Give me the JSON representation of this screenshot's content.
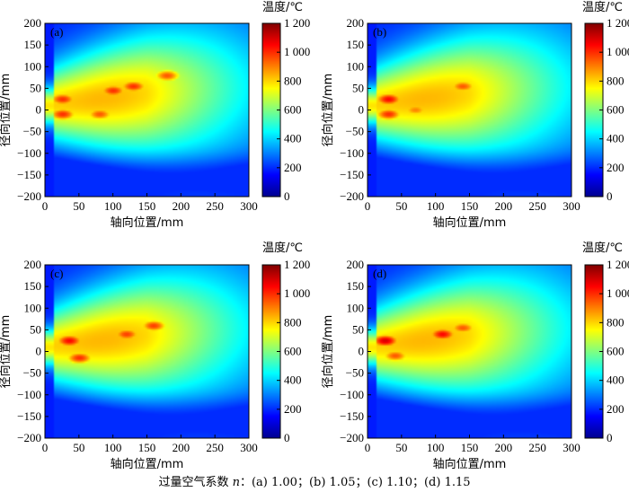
{
  "colors": {
    "colormap": [
      "#00008f",
      "#0000ff",
      "#0080ff",
      "#00ffff",
      "#80ff80",
      "#ffff00",
      "#ff8000",
      "#ff0000",
      "#800000"
    ]
  },
  "caption": {
    "prefix": "过量空气系数 ",
    "var": "n",
    "rest": "：(a) 1.00；(b) 1.05；(c) 1.10；(d) 1.15"
  },
  "chart_data": [
    {
      "type": "heatmap",
      "panel": "(a)",
      "excess_air_coefficient": 1.0,
      "xlabel": "轴向位置/mm",
      "ylabel": "径向位置/mm",
      "xlim": [
        0,
        300
      ],
      "ylim": [
        -200,
        200
      ],
      "xticks": [
        "0",
        "50",
        "100",
        "150",
        "200",
        "250",
        "300"
      ],
      "yticks": [
        "200",
        "150",
        "100",
        "50",
        "0",
        "−50",
        "−100",
        "−150",
        "−200"
      ],
      "colorbar": {
        "title": "温度/℃",
        "range": [
          0,
          1200
        ],
        "ticks": [
          "1 200",
          "1 000",
          "800",
          "600",
          "400",
          "200",
          "0"
        ]
      },
      "hotspots": [
        {
          "x": 25,
          "y": 25,
          "temperature": 1000
        },
        {
          "x": 25,
          "y": -10,
          "temperature": 1000
        },
        {
          "x": 80,
          "y": -10,
          "temperature": 950
        },
        {
          "x": 100,
          "y": 45,
          "temperature": 1000
        },
        {
          "x": 130,
          "y": 55,
          "temperature": 1000
        },
        {
          "x": 180,
          "y": 80,
          "temperature": 950
        }
      ]
    },
    {
      "type": "heatmap",
      "panel": "(b)",
      "excess_air_coefficient": 1.05,
      "xlabel": "轴向位置/mm",
      "ylabel": "径向位置/mm",
      "xlim": [
        0,
        300
      ],
      "ylim": [
        -200,
        200
      ],
      "xticks": [
        "0",
        "50",
        "100",
        "150",
        "200",
        "250",
        "300"
      ],
      "yticks": [
        "200",
        "150",
        "100",
        "50",
        "0",
        "−50",
        "−100",
        "−150",
        "−200"
      ],
      "colorbar": {
        "title": "温度/℃",
        "range": [
          0,
          1200
        ],
        "ticks": [
          "1 200",
          "1 000",
          "800",
          "600",
          "400",
          "200",
          "0"
        ]
      },
      "hotspots": [
        {
          "x": 30,
          "y": 25,
          "temperature": 1050
        },
        {
          "x": 30,
          "y": -10,
          "temperature": 1000
        },
        {
          "x": 70,
          "y": 0,
          "temperature": 900
        },
        {
          "x": 140,
          "y": 55,
          "temperature": 950
        }
      ]
    },
    {
      "type": "heatmap",
      "panel": "(c)",
      "excess_air_coefficient": 1.1,
      "xlabel": "轴向位置/mm",
      "ylabel": "径向位置/mm",
      "xlim": [
        0,
        300
      ],
      "ylim": [
        -200,
        200
      ],
      "xticks": [
        "0",
        "50",
        "100",
        "150",
        "200",
        "250",
        "300"
      ],
      "yticks": [
        "200",
        "150",
        "100",
        "50",
        "0",
        "−50",
        "−100",
        "−150",
        "−200"
      ],
      "colorbar": {
        "title": "温度/℃",
        "range": [
          0,
          1200
        ],
        "ticks": [
          "1 200",
          "1 000",
          "800",
          "600",
          "400",
          "200",
          "0"
        ]
      },
      "hotspots": [
        {
          "x": 35,
          "y": 25,
          "temperature": 1050
        },
        {
          "x": 50,
          "y": -15,
          "temperature": 1000
        },
        {
          "x": 120,
          "y": 40,
          "temperature": 980
        },
        {
          "x": 160,
          "y": 60,
          "temperature": 980
        }
      ]
    },
    {
      "type": "heatmap",
      "panel": "(d)",
      "excess_air_coefficient": 1.15,
      "xlabel": "轴向位置/mm",
      "ylabel": "径向位置/mm",
      "xlim": [
        0,
        300
      ],
      "ylim": [
        -200,
        200
      ],
      "xticks": [
        "0",
        "50",
        "100",
        "150",
        "200",
        "250",
        "300"
      ],
      "yticks": [
        "200",
        "150",
        "100",
        "50",
        "0",
        "−50",
        "−100",
        "−150",
        "−200"
      ],
      "colorbar": {
        "title": "温度/℃",
        "range": [
          0,
          1200
        ],
        "ticks": [
          "1 200",
          "1 000",
          "800",
          "600",
          "400",
          "200",
          "0"
        ]
      },
      "hotspots": [
        {
          "x": 25,
          "y": 25,
          "temperature": 1100
        },
        {
          "x": 40,
          "y": -10,
          "temperature": 950
        },
        {
          "x": 110,
          "y": 40,
          "temperature": 1050
        },
        {
          "x": 140,
          "y": 55,
          "temperature": 950
        }
      ]
    }
  ]
}
